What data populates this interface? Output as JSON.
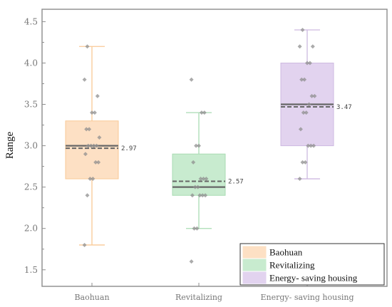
{
  "chart_data": {
    "type": "box",
    "ylabel": "Range",
    "ylim": [
      1.3,
      4.65
    ],
    "yticks": [
      "1.5",
      "2.0",
      "2.5",
      "3.0",
      "3.5",
      "4.0",
      "4.5"
    ],
    "categories": [
      "Baohuan",
      "Revitalizing",
      "Energy- saving housing"
    ],
    "legend_position": "bottom-right",
    "series": [
      {
        "name": "Baohuan",
        "color": "#f9c996",
        "fill": "#fde0c4",
        "min": 1.8,
        "q1": 2.6,
        "median": 3.0,
        "q3": 3.3,
        "max": 4.2,
        "mean": 2.97,
        "mean_label": "2.97",
        "points": [
          1.8,
          2.4,
          2.6,
          2.6,
          2.8,
          2.8,
          2.9,
          3.0,
          3.0,
          3.0,
          3.0,
          3.1,
          3.2,
          3.2,
          3.4,
          3.4,
          3.6,
          3.8,
          4.2
        ]
      },
      {
        "name": "Revitalizing",
        "color": "#a9dbb3",
        "fill": "#c8ebcf",
        "min": 2.0,
        "q1": 2.4,
        "median": 2.5,
        "q3": 2.9,
        "max": 3.4,
        "mean": 2.57,
        "mean_label": "2.57",
        "points": [
          1.6,
          2.0,
          2.0,
          2.4,
          2.4,
          2.4,
          2.4,
          2.5,
          2.5,
          2.6,
          2.6,
          2.6,
          2.8,
          3.0,
          3.0,
          3.4,
          3.4,
          3.8
        ]
      },
      {
        "name": "Energy- saving housing",
        "color": "#cdb9e0",
        "fill": "#e2d3ef",
        "min": 2.6,
        "q1": 3.0,
        "median": 3.5,
        "q3": 4.0,
        "max": 4.4,
        "mean": 3.47,
        "mean_label": "3.47",
        "points": [
          2.6,
          2.8,
          2.8,
          3.0,
          3.0,
          3.0,
          3.2,
          3.4,
          3.4,
          3.5,
          3.6,
          3.6,
          3.8,
          3.8,
          4.0,
          4.0,
          4.2,
          4.2,
          4.4
        ]
      }
    ]
  }
}
